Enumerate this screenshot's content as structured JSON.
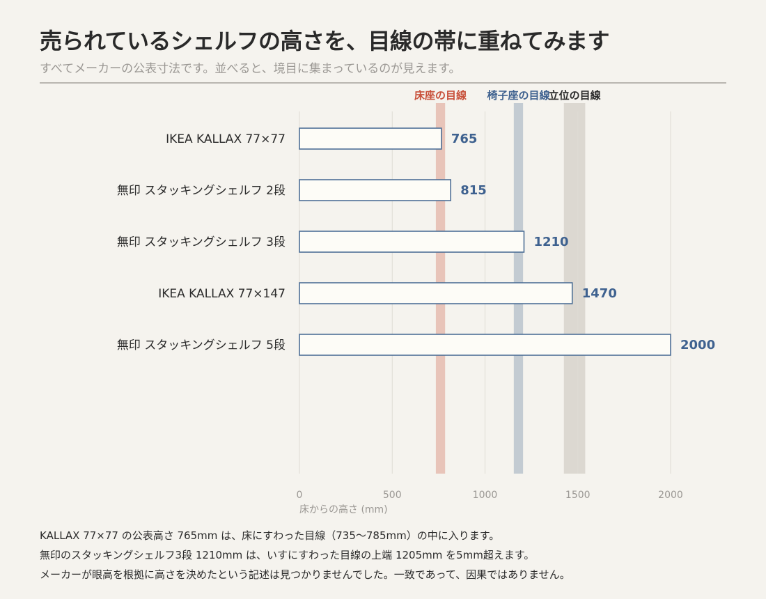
{
  "title": "売られているシェルフの高さを、目線の帯に重ねてみます",
  "subtitle": "すべてメーカーの公表寸法です。並べると、境目に集まっているのが見えます。",
  "colors": {
    "background": "#f5f3ee",
    "bar_fill": "#fdfcf7",
    "bar_stroke": "#4e6f96",
    "value_label": "#3e618f",
    "band_floor": "#e8c4b9",
    "band_chair": "#c3cbd2",
    "band_stand": "#dcd8d1",
    "label_floor": "#c8503a",
    "label_chair": "#3e618f",
    "label_stand": "#2b2b2b",
    "grid": "#dedbd4",
    "tick_text": "#9a9793"
  },
  "chart_data": {
    "type": "bar",
    "orientation": "horizontal",
    "categories": [
      "IKEA KALLAX 77×77",
      "無印 スタッキングシェルフ 2段",
      "無印 スタッキングシェルフ 3段",
      "IKEA KALLAX 77×147",
      "無印 スタッキングシェルフ 5段"
    ],
    "values": [
      765,
      815,
      1210,
      1470,
      2000
    ],
    "value_labels": [
      "765",
      "815",
      "1210",
      "1470",
      "2000"
    ],
    "xlim": [
      0,
      2000
    ],
    "xticks": [
      0,
      500,
      1000,
      1500,
      2000
    ],
    "xtick_labels": [
      "0",
      "500",
      "1000",
      "1500",
      "2000"
    ],
    "xlabel": "床からの高さ (mm)",
    "grid": true,
    "bands": [
      {
        "label": "床座の目線",
        "from": 735,
        "to": 785,
        "color_key": "band_floor",
        "label_color_key": "label_floor"
      },
      {
        "label": "椅子座の目線",
        "from": 1155,
        "to": 1205,
        "color_key": "band_chair",
        "label_color_key": "label_chair"
      },
      {
        "label": "立位の目線",
        "from": 1425,
        "to": 1540,
        "color_key": "band_stand",
        "label_color_key": "label_stand"
      }
    ]
  },
  "notes": [
    "KALLAX 77×77 の公表高さ 765mm は、床にすわった目線（735〜785mm）の中に入ります。",
    "無印のスタッキングシェルフ3段 1210mm は、いすにすわった目線の上端 1205mm を5mm超えます。",
    "メーカーが眼高を根拠に高さを決めたという記述は見つかりませんでした。一致であって、因果ではありません。"
  ]
}
